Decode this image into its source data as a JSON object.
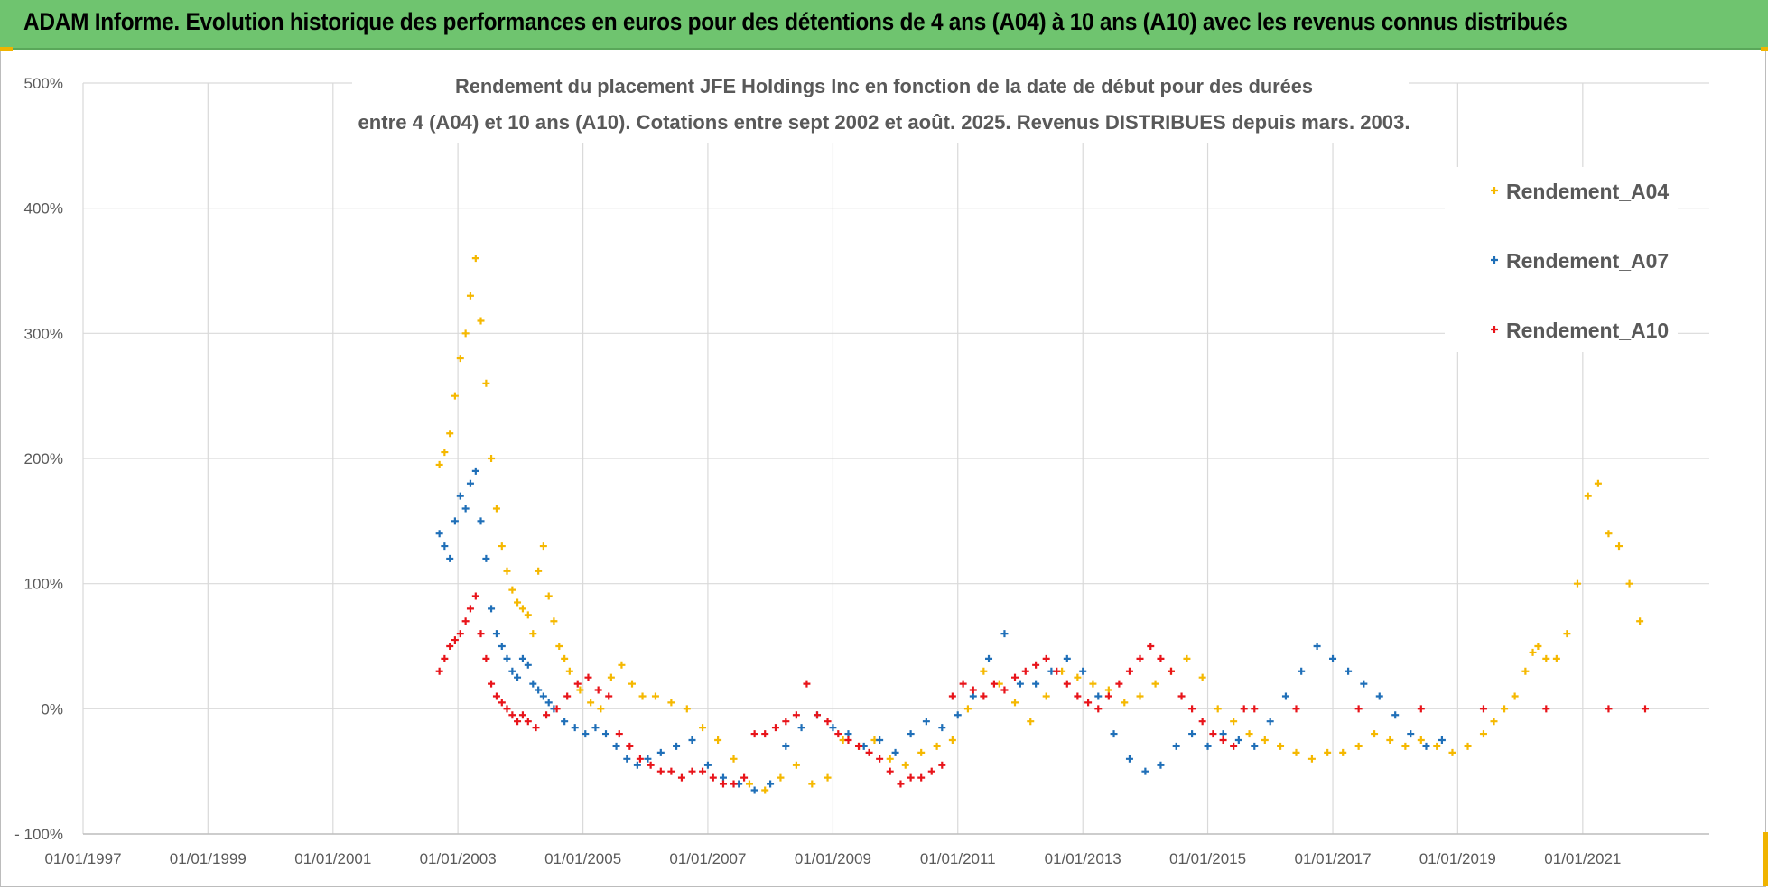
{
  "header": {
    "banner": "ADAM Informe. Evolution historique des performances en euros pour des détentions de 4 ans (A04) à 10 ans (A10) avec les revenus connus distribués"
  },
  "chart_data": {
    "type": "scatter",
    "title_line1": "Rendement du placement JFE Holdings Inc en fonction de la date de début pour des durées",
    "title_line2": "entre 4 (A04) et 10 ans (A10). Cotations entre sept 2002 et août. 2025. Revenus DISTRIBUES depuis mars. 2003.",
    "xlabel": "",
    "ylabel": "",
    "x_range": [
      "1997-01-01",
      "2022-01-01"
    ],
    "ylim": [
      -100,
      500
    ],
    "y_ticks": [
      "500%",
      "400%",
      "300%",
      "200%",
      "100%",
      "0%",
      "- 100%"
    ],
    "y_tick_values": [
      500,
      400,
      300,
      200,
      100,
      0,
      -100
    ],
    "x_ticks": [
      "01/01/1997",
      "01/01/1999",
      "01/01/2001",
      "01/01/2003",
      "01/01/2005",
      "01/01/2007",
      "01/01/2009",
      "01/01/2011",
      "01/01/2013",
      "01/01/2015",
      "01/01/2017",
      "01/01/2019",
      "01/01/2021"
    ],
    "x_tick_values": [
      "1997-01-01",
      "1999-01-01",
      "2001-01-01",
      "2003-01-01",
      "2005-01-01",
      "2007-01-01",
      "2009-01-01",
      "2011-01-01",
      "2013-01-01",
      "2015-01-01",
      "2017-01-01",
      "2019-01-01",
      "2021-01-01"
    ],
    "grid": "vertical and horizontal",
    "legend_position": "right",
    "series": [
      {
        "name": "Rendement_A04",
        "color": "#f5b800",
        "x": [
          "2002-09-15",
          "2002-10-15",
          "2002-11-15",
          "2002-12-15",
          "2003-01-15",
          "2003-02-15",
          "2003-03-15",
          "2003-04-15",
          "2003-05-15",
          "2003-06-15",
          "2003-07-15",
          "2003-08-15",
          "2003-09-15",
          "2003-10-15",
          "2003-11-15",
          "2003-12-15",
          "2004-01-15",
          "2004-02-15",
          "2004-03-15",
          "2004-04-15",
          "2004-05-15",
          "2004-06-15",
          "2004-07-15",
          "2004-08-15",
          "2004-09-15",
          "2004-10-15",
          "2004-12-15",
          "2005-02-15",
          "2005-04-15",
          "2005-06-15",
          "2005-08-15",
          "2005-10-15",
          "2005-12-15",
          "2006-03-01",
          "2006-06-01",
          "2006-09-01",
          "2006-12-01",
          "2007-03-01",
          "2007-06-01",
          "2007-09-01",
          "2007-12-01",
          "2008-03-01",
          "2008-06-01",
          "2008-09-01",
          "2008-12-01",
          "2009-03-01",
          "2009-06-01",
          "2009-09-01",
          "2009-12-01",
          "2010-03-01",
          "2010-06-01",
          "2010-09-01",
          "2010-12-01",
          "2011-03-01",
          "2011-06-01",
          "2011-09-01",
          "2011-12-01",
          "2012-03-01",
          "2012-06-01",
          "2012-09-01",
          "2012-12-01",
          "2013-03-01",
          "2013-06-01",
          "2013-09-01",
          "2013-12-01",
          "2014-03-01",
          "2014-06-01",
          "2014-09-01",
          "2014-12-01",
          "2015-03-01",
          "2015-06-01",
          "2015-09-01",
          "2015-12-01",
          "2016-03-01",
          "2016-06-01",
          "2016-09-01",
          "2016-12-01",
          "2017-03-01",
          "2017-06-01",
          "2017-09-01",
          "2017-12-01",
          "2018-03-01",
          "2018-06-01",
          "2018-09-01",
          "2018-12-01",
          "2019-03-01",
          "2019-06-01",
          "2019-08-01",
          "2019-10-01",
          "2019-12-01",
          "2020-02-01",
          "2020-03-15",
          "2020-04-15",
          "2020-06-01",
          "2020-08-01",
          "2020-10-01",
          "2020-12-01",
          "2021-02-01",
          "2021-04-01",
          "2021-06-01",
          "2021-08-01",
          "2021-10-01",
          "2021-12-01"
        ],
        "y": [
          195,
          205,
          220,
          250,
          280,
          300,
          330,
          360,
          310,
          260,
          200,
          160,
          130,
          110,
          95,
          85,
          80,
          75,
          60,
          110,
          130,
          90,
          70,
          50,
          40,
          30,
          15,
          5,
          0,
          25,
          35,
          20,
          10,
          10,
          5,
          0,
          -15,
          -25,
          -40,
          -60,
          -65,
          -55,
          -45,
          -60,
          -55,
          -25,
          -30,
          -25,
          -40,
          -45,
          -35,
          -30,
          -25,
          0,
          30,
          20,
          5,
          -10,
          10,
          30,
          25,
          20,
          15,
          5,
          10,
          20,
          30,
          40,
          25,
          0,
          -10,
          -20,
          -25,
          -30,
          -35,
          -40,
          -35,
          -35,
          -30,
          -20,
          -25,
          -30,
          -25,
          -30,
          -35,
          -30,
          -20,
          -10,
          0,
          10,
          30,
          45,
          50,
          40,
          40,
          60,
          100,
          170,
          180,
          140,
          130,
          100,
          70
        ]
      },
      {
        "name": "Rendement_A07",
        "color": "#1f6fb8",
        "x": [
          "2002-09-15",
          "2002-10-15",
          "2002-11-15",
          "2002-12-15",
          "2003-01-15",
          "2003-02-15",
          "2003-03-15",
          "2003-04-15",
          "2003-05-15",
          "2003-06-15",
          "2003-07-15",
          "2003-08-15",
          "2003-09-15",
          "2003-10-15",
          "2003-11-15",
          "2003-12-15",
          "2004-01-15",
          "2004-02-15",
          "2004-03-15",
          "2004-04-15",
          "2004-05-15",
          "2004-06-15",
          "2004-07-15",
          "2004-09-15",
          "2004-11-15",
          "2005-01-15",
          "2005-03-15",
          "2005-05-15",
          "2005-07-15",
          "2005-09-15",
          "2005-11-15",
          "2006-01-15",
          "2006-04-01",
          "2006-07-01",
          "2006-10-01",
          "2007-01-01",
          "2007-04-01",
          "2007-07-01",
          "2007-10-01",
          "2008-01-01",
          "2008-04-01",
          "2008-07-01",
          "2008-10-01",
          "2009-01-01",
          "2009-04-01",
          "2009-07-01",
          "2009-10-01",
          "2010-01-01",
          "2010-04-01",
          "2010-07-01",
          "2010-10-01",
          "2011-01-01",
          "2011-04-01",
          "2011-07-01",
          "2011-10-01",
          "2012-01-01",
          "2012-04-01",
          "2012-07-01",
          "2012-10-01",
          "2013-01-01",
          "2013-04-01",
          "2013-07-01",
          "2013-10-01",
          "2014-01-01",
          "2014-04-01",
          "2014-07-01",
          "2014-10-01",
          "2015-01-01",
          "2015-04-01",
          "2015-07-01",
          "2015-10-01",
          "2016-01-01",
          "2016-04-01",
          "2016-07-01",
          "2016-10-01",
          "2017-01-01",
          "2017-04-01",
          "2017-07-01",
          "2017-10-01",
          "2018-01-01",
          "2018-04-01",
          "2018-07-01",
          "2018-10-01"
        ],
        "y": [
          140,
          130,
          120,
          150,
          170,
          160,
          180,
          190,
          150,
          120,
          80,
          60,
          50,
          40,
          30,
          25,
          40,
          35,
          20,
          15,
          10,
          5,
          0,
          -10,
          -15,
          -20,
          -15,
          -20,
          -30,
          -40,
          -45,
          -40,
          -35,
          -30,
          -25,
          -45,
          -55,
          -60,
          -65,
          -60,
          -30,
          -15,
          -5,
          -15,
          -20,
          -30,
          -25,
          -35,
          -20,
          -10,
          -15,
          -5,
          10,
          40,
          60,
          20,
          20,
          30,
          40,
          30,
          10,
          -20,
          -40,
          -50,
          -45,
          -30,
          -20,
          -30,
          -20,
          -25,
          -30,
          -10,
          10,
          30,
          50,
          40,
          30,
          20,
          10,
          -5,
          -20,
          -30,
          -25
        ]
      },
      {
        "name": "Rendement_A10",
        "color": "#e8141a",
        "x": [
          "2002-09-15",
          "2002-10-15",
          "2002-11-15",
          "2002-12-15",
          "2003-01-15",
          "2003-02-15",
          "2003-03-15",
          "2003-04-15",
          "2003-05-15",
          "2003-06-15",
          "2003-07-15",
          "2003-08-15",
          "2003-09-15",
          "2003-10-15",
          "2003-11-15",
          "2003-12-15",
          "2004-01-15",
          "2004-02-15",
          "2004-04-01",
          "2004-06-01",
          "2004-08-01",
          "2004-10-01",
          "2004-12-01",
          "2005-02-01",
          "2005-04-01",
          "2005-06-01",
          "2005-08-01",
          "2005-10-01",
          "2005-12-01",
          "2006-02-01",
          "2006-04-01",
          "2006-06-01",
          "2006-08-01",
          "2006-10-01",
          "2006-12-01",
          "2007-02-01",
          "2007-04-01",
          "2007-06-01",
          "2007-08-01",
          "2007-10-01",
          "2007-12-01",
          "2008-02-01",
          "2008-04-01",
          "2008-06-01",
          "2008-08-01",
          "2008-10-01",
          "2008-12-01",
          "2009-02-01",
          "2009-04-01",
          "2009-06-01",
          "2009-08-01",
          "2009-10-01",
          "2009-12-01",
          "2010-02-01",
          "2010-04-01",
          "2010-06-01",
          "2010-08-01",
          "2010-10-01",
          "2010-12-01",
          "2011-02-01",
          "2011-04-01",
          "2011-06-01",
          "2011-08-01",
          "2011-10-01",
          "2011-12-01",
          "2012-02-01",
          "2012-04-01",
          "2012-06-01",
          "2012-08-01",
          "2012-10-01",
          "2012-12-01",
          "2013-02-01",
          "2013-04-01",
          "2013-06-01",
          "2013-08-01",
          "2013-10-01",
          "2013-12-01",
          "2014-02-01",
          "2014-04-01",
          "2014-06-01",
          "2014-08-01",
          "2014-10-01",
          "2014-12-01",
          "2015-02-01",
          "2015-04-01",
          "2015-06-01",
          "2015-08-01",
          "2015-10-01",
          "2016-06-01",
          "2017-06-01",
          "2018-06-01",
          "2019-06-01",
          "2020-06-01",
          "2021-06-01",
          "2022-01-01"
        ],
        "y": [
          30,
          40,
          50,
          55,
          60,
          70,
          80,
          90,
          60,
          40,
          20,
          10,
          5,
          0,
          -5,
          -10,
          -5,
          -10,
          -15,
          -5,
          0,
          10,
          20,
          25,
          15,
          10,
          -20,
          -30,
          -40,
          -45,
          -50,
          -50,
          -55,
          -50,
          -50,
          -55,
          -60,
          -60,
          -55,
          -20,
          -20,
          -15,
          -10,
          -5,
          20,
          -5,
          -10,
          -20,
          -25,
          -30,
          -35,
          -40,
          -50,
          -60,
          -55,
          -55,
          -50,
          -45,
          10,
          20,
          15,
          10,
          20,
          15,
          25,
          30,
          35,
          40,
          30,
          20,
          10,
          5,
          0,
          10,
          20,
          30,
          40,
          50,
          40,
          30,
          10,
          0,
          -10,
          -20,
          -25,
          -30,
          0,
          0,
          0,
          0,
          0,
          0,
          0,
          0,
          0
        ]
      }
    ]
  }
}
